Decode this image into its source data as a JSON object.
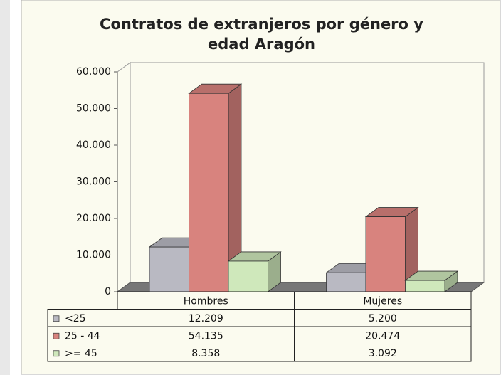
{
  "chart_data": {
    "type": "bar3d",
    "title": "Contratos de extranjeros por género y edad  Aragón",
    "categories": [
      "Hombres",
      "Mujeres"
    ],
    "series": [
      {
        "name": "<25",
        "color": "#b9b9c2",
        "values": [
          12209,
          5200
        ],
        "value_labels": [
          "12.209",
          "5.200"
        ]
      },
      {
        "name": "25 - 44",
        "color": "#d8837e",
        "values": [
          54135,
          20474
        ],
        "value_labels": [
          "54.135",
          "20.474"
        ]
      },
      {
        "name": ">= 45",
        "color": "#cfe8bb",
        "values": [
          8358,
          3092
        ],
        "value_labels": [
          "8.358",
          "3.092"
        ]
      }
    ],
    "ylim": [
      0,
      60000
    ],
    "yticks": [
      0,
      {
        "value": 10000,
        "label": "10.000"
      },
      {
        "value": 20000,
        "label": "20.000"
      },
      {
        "value": 30000,
        "label": "30.000"
      },
      {
        "value": 40000,
        "label": "40.000"
      },
      {
        "value": 50000,
        "label": "50.000"
      },
      {
        "value": 60000,
        "label": "60.000"
      }
    ],
    "grid": false,
    "data_table": true
  }
}
